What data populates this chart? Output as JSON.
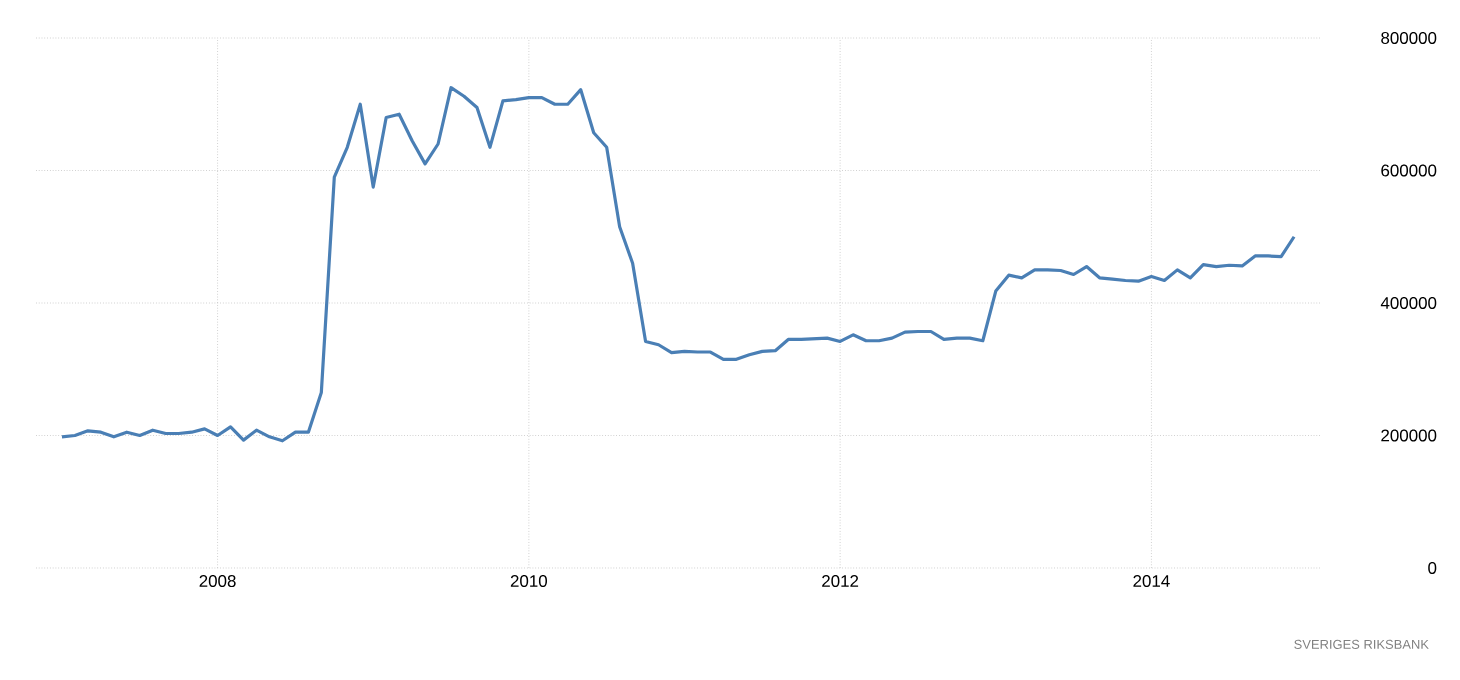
{
  "chart_data": {
    "type": "line",
    "x": [
      "2007-01",
      "2007-02",
      "2007-03",
      "2007-04",
      "2007-05",
      "2007-06",
      "2007-07",
      "2007-08",
      "2007-09",
      "2007-10",
      "2007-11",
      "2007-12",
      "2008-01",
      "2008-02",
      "2008-03",
      "2008-04",
      "2008-05",
      "2008-06",
      "2008-07",
      "2008-08",
      "2008-09",
      "2008-10",
      "2008-11",
      "2008-12",
      "2009-01",
      "2009-02",
      "2009-03",
      "2009-04",
      "2009-05",
      "2009-06",
      "2009-07",
      "2009-08",
      "2009-09",
      "2009-10",
      "2009-11",
      "2009-12",
      "2010-01",
      "2010-02",
      "2010-03",
      "2010-04",
      "2010-05",
      "2010-06",
      "2010-07",
      "2010-08",
      "2010-09",
      "2010-10",
      "2010-11",
      "2010-12",
      "2011-01",
      "2011-02",
      "2011-03",
      "2011-04",
      "2011-05",
      "2011-06",
      "2011-07",
      "2011-08",
      "2011-09",
      "2011-10",
      "2011-11",
      "2011-12",
      "2012-01",
      "2012-02",
      "2012-03",
      "2012-04",
      "2012-05",
      "2012-06",
      "2012-07",
      "2012-08",
      "2012-09",
      "2012-10",
      "2012-11",
      "2012-12",
      "2013-01",
      "2013-02",
      "2013-03",
      "2013-04",
      "2013-05",
      "2013-06",
      "2013-07",
      "2013-08",
      "2013-09",
      "2013-10",
      "2013-11",
      "2013-12",
      "2014-01",
      "2014-02",
      "2014-03",
      "2014-04",
      "2014-05",
      "2014-06",
      "2014-07",
      "2014-08",
      "2014-09",
      "2014-10",
      "2014-11",
      "2014-12"
    ],
    "series": [
      {
        "color": "#4a7fb5",
        "values": [
          198000,
          200000,
          207000,
          205000,
          198000,
          205000,
          200000,
          208000,
          203000,
          203000,
          205000,
          210000,
          200000,
          213000,
          193000,
          208000,
          198000,
          192000,
          205000,
          205000,
          265000,
          590000,
          635000,
          700000,
          575000,
          680000,
          685000,
          645000,
          610000,
          640000,
          725000,
          712000,
          695000,
          635000,
          705000,
          707000,
          710000,
          710000,
          700000,
          700000,
          722000,
          657000,
          635000,
          515000,
          460000,
          342000,
          337000,
          325000,
          327000,
          326000,
          326000,
          315000,
          315000,
          322000,
          327000,
          328000,
          345000,
          345000,
          346000,
          347000,
          342000,
          352000,
          343000,
          343000,
          347000,
          356000,
          357000,
          357000,
          345000,
          347000,
          347000,
          343000,
          418000,
          442000,
          438000,
          450000,
          450000,
          449000,
          443000,
          455000,
          438000,
          436000,
          434000,
          433000,
          440000,
          434000,
          450000,
          438000,
          458000,
          455000,
          457000,
          456000,
          471000,
          471000,
          470000,
          500000
        ]
      }
    ],
    "xlim": [
      "2006-11",
      "2015-02"
    ],
    "xticks": [
      {
        "value": "2008",
        "label": "2008"
      },
      {
        "value": "2010",
        "label": "2010"
      },
      {
        "value": "2012",
        "label": "2012"
      },
      {
        "value": "2014",
        "label": "2014"
      }
    ],
    "ylim": [
      0,
      800000
    ],
    "yticks": [
      0,
      200000,
      400000,
      600000,
      800000
    ],
    "grid": true,
    "marker": "none",
    "line_style": "solid",
    "annotations": [
      "SVERIGES RIKSBANK"
    ]
  }
}
